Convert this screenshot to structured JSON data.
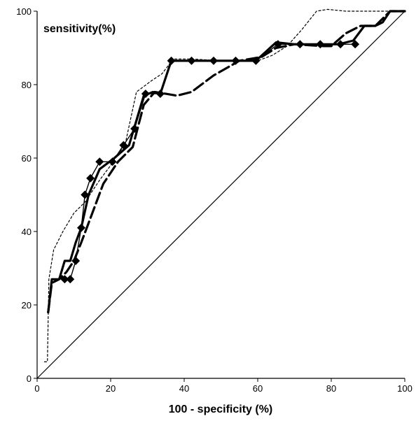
{
  "chart_data": {
    "type": "line",
    "title": "",
    "xlabel": "100 - specificity (%)",
    "ylabel": "sensitivity(%)",
    "xlim": [
      0,
      100
    ],
    "ylim": [
      0,
      100
    ],
    "xticks": [
      0,
      20,
      40,
      60,
      80,
      100
    ],
    "yticks": [
      0,
      20,
      40,
      60,
      80,
      100
    ],
    "grid": false,
    "legend": "none",
    "series": [
      {
        "style": "thin-solid-diamonds",
        "color": "#000000",
        "x": [
          7.5,
          9,
          10.5,
          12,
          13,
          14.5,
          17,
          20.5,
          23.5,
          26.5,
          29.5,
          33.5,
          36.5,
          42,
          48,
          54,
          59.5,
          65.5,
          71.5,
          77,
          82.5,
          86.5
        ],
        "y": [
          27,
          27,
          32,
          41,
          50,
          54.5,
          59,
          59,
          63.5,
          68,
          77.5,
          77.5,
          86.5,
          86.5,
          86.5,
          86.5,
          86.5,
          91,
          91,
          91,
          91,
          91
        ]
      },
      {
        "style": "thick-solid",
        "color": "#000000",
        "x": [
          3,
          4,
          6,
          7.5,
          9,
          10.5,
          12,
          14,
          17,
          21,
          25,
          29,
          31.5,
          33.5,
          36.5,
          44,
          55,
          59.5,
          65,
          70,
          78,
          82,
          86,
          89,
          92,
          94,
          96,
          100
        ],
        "y": [
          18,
          27,
          27,
          32,
          32,
          37,
          41,
          50,
          57,
          60,
          63.5,
          77,
          78,
          77.5,
          86.5,
          86.5,
          86.5,
          86.5,
          91.5,
          91,
          91,
          91,
          92,
          96,
          96,
          97,
          100,
          100
        ]
      },
      {
        "style": "thick-dashed",
        "color": "#000000",
        "x": [
          3,
          4,
          6,
          8,
          10,
          12,
          15,
          18,
          22,
          26,
          29,
          32,
          35,
          38,
          42,
          48,
          55,
          61,
          65,
          70,
          78,
          80,
          84,
          88,
          92,
          96,
          100
        ],
        "y": [
          18,
          26,
          27,
          29,
          32,
          37,
          45,
          53,
          59,
          63,
          74.5,
          78,
          77.5,
          77,
          78,
          82.5,
          86.5,
          87.5,
          90,
          91,
          90.5,
          90.5,
          94,
          96,
          96,
          100,
          100
        ]
      },
      {
        "style": "thin-dotted",
        "color": "#000000",
        "x": [
          2,
          2.8,
          3.2,
          4.5,
          7,
          10,
          13,
          17,
          20,
          24,
          27,
          31,
          34,
          37,
          42,
          50,
          60,
          64,
          68,
          72,
          76,
          79,
          84,
          88,
          92,
          96,
          100
        ],
        "y": [
          4.5,
          4.5,
          27,
          35,
          40,
          45,
          48,
          54,
          58,
          64,
          78,
          81,
          83,
          87,
          87,
          86.5,
          86.5,
          88,
          90.5,
          95,
          100,
          100.5,
          100,
          100,
          100,
          100,
          100
        ]
      },
      {
        "style": "reference-diagonal",
        "color": "#000000",
        "x": [
          0,
          100
        ],
        "y": [
          0,
          100
        ]
      }
    ]
  }
}
